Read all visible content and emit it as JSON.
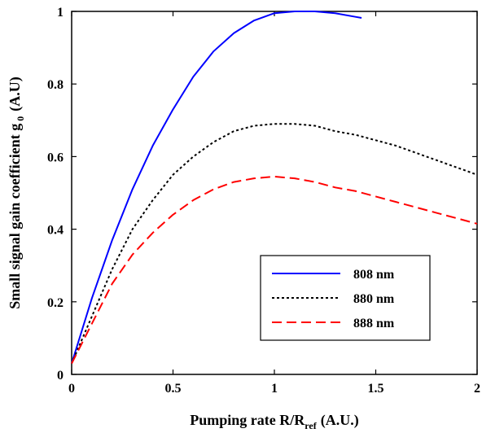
{
  "chart_data": {
    "type": "line",
    "xlabel": "Pumping rate R/R",
    "xlabel_sub": "ref",
    "xlabel_unit": "(A.U.)",
    "ylabel": "Small signal gain coefficient g",
    "ylabel_sub": "0",
    "ylabel_unit": "(A.U)",
    "xlim": [
      0,
      2
    ],
    "ylim": [
      0,
      1
    ],
    "xticks": [
      0,
      0.5,
      1,
      1.5,
      2
    ],
    "xtick_labels": [
      "0",
      "0.5",
      "1",
      "1.5",
      "2"
    ],
    "yticks": [
      0,
      0.2,
      0.4,
      0.6,
      0.8,
      1
    ],
    "ytick_labels": [
      "0",
      "0.2",
      "0.4",
      "0.6",
      "0.8",
      "1"
    ],
    "grid": false,
    "legend_position": "lower-right",
    "series": [
      {
        "name": "808 nm",
        "color": "#0000ff",
        "dash": "solid",
        "x": [
          0,
          0.1,
          0.2,
          0.3,
          0.4,
          0.5,
          0.6,
          0.7,
          0.8,
          0.9,
          1.0,
          1.1,
          1.2,
          1.3,
          1.4,
          1.43
        ],
        "y": [
          0.03,
          0.21,
          0.37,
          0.51,
          0.63,
          0.73,
          0.82,
          0.89,
          0.94,
          0.975,
          0.995,
          1.0,
          1.0,
          0.995,
          0.985,
          0.982
        ]
      },
      {
        "name": "880 nm",
        "color": "#000000",
        "dash": "dotted",
        "x": [
          0,
          0.1,
          0.2,
          0.3,
          0.4,
          0.5,
          0.6,
          0.7,
          0.8,
          0.9,
          1.0,
          1.1,
          1.2,
          1.3,
          1.4,
          1.5,
          1.6,
          1.7,
          1.8,
          1.9,
          2.0
        ],
        "y": [
          0.03,
          0.16,
          0.29,
          0.4,
          0.48,
          0.55,
          0.6,
          0.64,
          0.67,
          0.685,
          0.69,
          0.69,
          0.685,
          0.67,
          0.66,
          0.645,
          0.63,
          0.61,
          0.59,
          0.57,
          0.55
        ]
      },
      {
        "name": "888 nm",
        "color": "#ff0000",
        "dash": "dashed",
        "x": [
          0,
          0.1,
          0.2,
          0.3,
          0.4,
          0.5,
          0.6,
          0.7,
          0.8,
          0.9,
          1.0,
          1.1,
          1.2,
          1.3,
          1.4,
          1.5,
          1.6,
          1.7,
          1.8,
          1.9,
          2.0
        ],
        "y": [
          0.03,
          0.14,
          0.25,
          0.33,
          0.39,
          0.44,
          0.48,
          0.51,
          0.53,
          0.54,
          0.545,
          0.54,
          0.53,
          0.515,
          0.505,
          0.49,
          0.475,
          0.46,
          0.445,
          0.43,
          0.415
        ]
      }
    ]
  }
}
